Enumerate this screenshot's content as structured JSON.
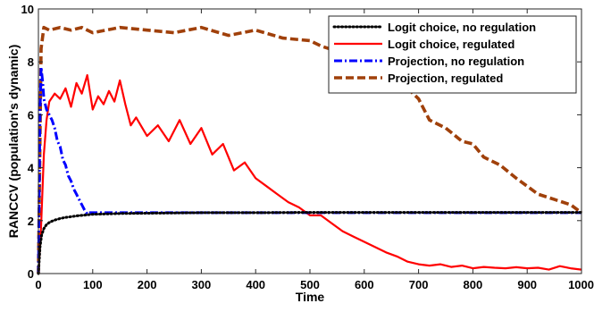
{
  "chart_data": {
    "type": "line",
    "title": "",
    "xlabel": "Time",
    "ylabel": "RANCCV (population's dynamic)",
    "xlim": [
      0,
      1000
    ],
    "ylim": [
      0,
      10
    ],
    "xticks": [
      0,
      100,
      200,
      300,
      400,
      500,
      600,
      700,
      800,
      900,
      1000
    ],
    "yticks": [
      0,
      2,
      4,
      6,
      8,
      10
    ],
    "grid": false,
    "legend_position": "top-right",
    "series": [
      {
        "name": "Logit choice, no regulation",
        "color": "#000000",
        "style": "dotted",
        "x": [
          0,
          3,
          6,
          10,
          15,
          20,
          25,
          30,
          40,
          50,
          60,
          70,
          80,
          100,
          150,
          200,
          300,
          400,
          500,
          600,
          700,
          800,
          900,
          1000
        ],
        "y": [
          0,
          1.0,
          1.45,
          1.7,
          1.85,
          1.93,
          1.98,
          2.02,
          2.08,
          2.12,
          2.15,
          2.18,
          2.2,
          2.24,
          2.27,
          2.28,
          2.3,
          2.3,
          2.31,
          2.31,
          2.31,
          2.31,
          2.31,
          2.31
        ]
      },
      {
        "name": "Logit choice, regulated",
        "color": "#ff0000",
        "style": "solid",
        "x": [
          0,
          5,
          10,
          15,
          20,
          30,
          40,
          50,
          60,
          70,
          80,
          90,
          100,
          110,
          120,
          130,
          140,
          150,
          160,
          170,
          180,
          200,
          220,
          240,
          260,
          280,
          300,
          320,
          340,
          360,
          380,
          400,
          420,
          440,
          460,
          480,
          500,
          520,
          540,
          560,
          580,
          600,
          620,
          640,
          660,
          680,
          700,
          720,
          740,
          760,
          780,
          800,
          820,
          840,
          860,
          880,
          900,
          920,
          940,
          960,
          980,
          1000
        ],
        "y": [
          0,
          1.8,
          4.5,
          5.8,
          6.5,
          6.8,
          6.6,
          7.0,
          6.3,
          7.2,
          6.8,
          7.5,
          6.2,
          6.7,
          6.4,
          6.9,
          6.5,
          7.3,
          6.4,
          5.6,
          5.9,
          5.2,
          5.6,
          5.0,
          5.8,
          4.9,
          5.5,
          4.5,
          4.9,
          3.9,
          4.2,
          3.6,
          3.3,
          3.0,
          2.7,
          2.5,
          2.2,
          2.2,
          1.9,
          1.6,
          1.4,
          1.2,
          1.0,
          0.8,
          0.65,
          0.45,
          0.35,
          0.3,
          0.35,
          0.25,
          0.3,
          0.2,
          0.25,
          0.22,
          0.2,
          0.24,
          0.2,
          0.22,
          0.15,
          0.28,
          0.2,
          0.15
        ]
      },
      {
        "name": "Projection, no regulation",
        "color": "#0000ff",
        "style": "dashdot",
        "x": [
          0,
          3,
          5,
          8,
          10,
          15,
          20,
          25,
          30,
          35,
          40,
          45,
          50,
          55,
          60,
          65,
          70,
          75,
          80,
          85,
          90,
          95,
          100,
          150,
          200,
          300,
          400,
          500,
          600,
          700,
          800,
          900,
          1000
        ],
        "y": [
          0,
          6.0,
          7.8,
          7.2,
          6.6,
          6.2,
          6.0,
          5.8,
          5.5,
          5.0,
          4.8,
          4.3,
          4.1,
          3.7,
          3.5,
          3.2,
          3.0,
          2.8,
          2.6,
          2.4,
          2.25,
          2.3,
          2.3,
          2.3,
          2.3,
          2.3,
          2.3,
          2.3,
          2.3,
          2.3,
          2.3,
          2.3,
          2.3
        ]
      },
      {
        "name": "Projection, regulated",
        "color": "#a0400a",
        "style": "dashed",
        "x": [
          0,
          5,
          10,
          20,
          40,
          60,
          80,
          100,
          150,
          200,
          250,
          300,
          350,
          400,
          450,
          500,
          520,
          550,
          580,
          600,
          620,
          650,
          680,
          700,
          720,
          750,
          780,
          800,
          820,
          850,
          880,
          900,
          920,
          950,
          980,
          1000
        ],
        "y": [
          0,
          8.5,
          9.3,
          9.2,
          9.3,
          9.2,
          9.3,
          9.1,
          9.3,
          9.2,
          9.1,
          9.3,
          9.0,
          9.2,
          8.9,
          8.8,
          8.6,
          8.4,
          8.5,
          8.3,
          7.6,
          6.9,
          7.0,
          6.6,
          5.8,
          5.5,
          5.0,
          4.9,
          4.4,
          4.1,
          3.6,
          3.3,
          3.0,
          2.8,
          2.6,
          2.3
        ]
      }
    ]
  }
}
